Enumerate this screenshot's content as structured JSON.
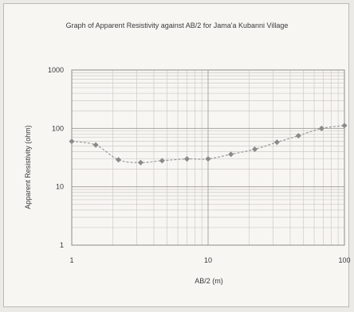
{
  "chart_data": {
    "type": "scatter",
    "title": "Graph of Apparent Resistivity against AB/2 for Jama'a Kubanni Village",
    "xlabel": "AB/2 (m)",
    "ylabel": "Apparent Resistivity (ohm)",
    "xscale": "log",
    "yscale": "log",
    "xlim": [
      1,
      100
    ],
    "ylim": [
      1,
      1000
    ],
    "x_ticks": [
      "1",
      "10",
      "100"
    ],
    "y_ticks": [
      "1",
      "10",
      "100",
      "1000"
    ],
    "grid": true,
    "legend": "none",
    "points": [
      {
        "x": 1.0,
        "y": 60
      },
      {
        "x": 1.5,
        "y": 52
      },
      {
        "x": 2.2,
        "y": 29
      },
      {
        "x": 3.2,
        "y": 26
      },
      {
        "x": 4.6,
        "y": 28
      },
      {
        "x": 7.0,
        "y": 30
      },
      {
        "x": 10.0,
        "y": 30
      },
      {
        "x": 14.7,
        "y": 36
      },
      {
        "x": 22.0,
        "y": 44
      },
      {
        "x": 32.0,
        "y": 58
      },
      {
        "x": 46.0,
        "y": 75
      },
      {
        "x": 68.0,
        "y": 100
      },
      {
        "x": 100.0,
        "y": 112
      }
    ],
    "colors": {
      "marker": "#8a8a8a",
      "line": "#9a9a9a",
      "grid_major": "#a9a6a0",
      "grid_minor": "#cfccc6"
    }
  }
}
